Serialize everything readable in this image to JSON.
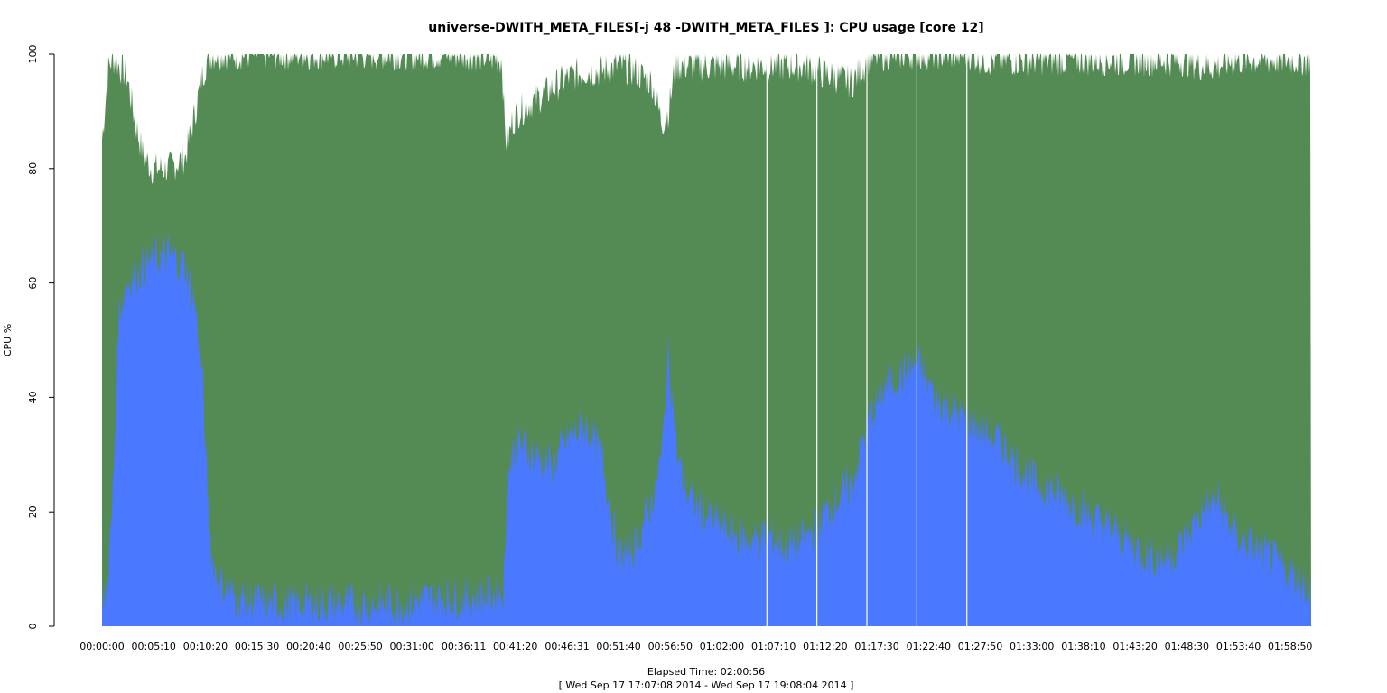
{
  "chart_data": {
    "type": "area",
    "title": "universe-DWITH_META_FILES[-j 48 -DWITH_META_FILES ]: CPU usage [core 12]",
    "xlabel": "Elapsed Time: 02:00:56",
    "xlabel_sub": "[ Wed Sep 17 17:07:08 2014 - Wed Sep 17 19:08:04 2014 ]",
    "ylabel": "CPU %",
    "ylim": [
      0,
      100
    ],
    "xlim_seconds": [
      0,
      7256
    ],
    "y_ticks": [
      "0",
      "20",
      "40",
      "60",
      "80",
      "100"
    ],
    "x_ticks": [
      "00:00:00",
      "00:05:10",
      "00:10:20",
      "00:15:30",
      "00:20:40",
      "00:25:50",
      "00:31:00",
      "00:36:11",
      "00:41:20",
      "00:46:31",
      "00:51:40",
      "00:56:50",
      "01:02:00",
      "01:07:10",
      "01:12:20",
      "01:17:30",
      "01:22:40",
      "01:27:50",
      "01:33:00",
      "01:38:10",
      "01:43:20",
      "01:48:30",
      "01:53:40",
      "01:58:50"
    ],
    "x_tick_seconds": [
      0,
      310,
      620,
      930,
      1240,
      1550,
      1860,
      2171,
      2480,
      2791,
      3100,
      3410,
      3720,
      4030,
      4340,
      4650,
      4960,
      5270,
      5580,
      5890,
      6200,
      6510,
      6820,
      7130
    ],
    "grid": false,
    "legend": "none",
    "colors": {
      "user": "#4a78ff",
      "system": "#548a54"
    },
    "series": [
      {
        "x": [
          0,
          40,
          60,
          80,
          100,
          150,
          200,
          250,
          300,
          400,
          500,
          560,
          600,
          630,
          660,
          700,
          800,
          1000,
          1200,
          1500,
          1800,
          2000,
          2200,
          2400,
          2415,
          2430,
          2460,
          2500,
          2600,
          2700,
          2800,
          2900,
          3000,
          3100,
          3200,
          3300,
          3360,
          3400,
          3430,
          3450,
          3500,
          3600,
          3700,
          3800,
          3900,
          4000,
          4100,
          4200,
          4300,
          4400,
          4500,
          4600,
          4700,
          4800,
          4900,
          5000,
          5100,
          5200,
          5300,
          5400,
          5500,
          5600,
          5700,
          5800,
          5900,
          6000,
          6100,
          6200,
          6300,
          6400,
          6500,
          6600,
          6700,
          6800,
          6900,
          7000,
          7100,
          7200,
          7256
        ],
        "values": [
          2,
          10,
          20,
          35,
          55,
          60,
          62,
          63,
          64,
          65,
          63,
          56,
          45,
          25,
          12,
          8,
          5,
          4,
          4,
          4,
          4,
          5,
          5,
          6,
          8,
          25,
          30,
          32,
          30,
          28,
          33,
          35,
          30,
          12,
          14,
          22,
          30,
          48,
          38,
          30,
          24,
          20,
          18,
          16,
          15,
          16,
          14,
          15,
          18,
          22,
          25,
          36,
          42,
          44,
          46,
          40,
          38,
          36,
          34,
          32,
          28,
          25,
          24,
          22,
          20,
          18,
          16,
          14,
          12,
          12,
          15,
          20,
          22,
          16,
          14,
          12,
          10,
          8,
          6
        ]
      },
      {
        "x": [
          0,
          40,
          60,
          80,
          100,
          150,
          200,
          250,
          300,
          400,
          500,
          560,
          600,
          630,
          660,
          700,
          800,
          1000,
          1200,
          1500,
          1800,
          2000,
          2200,
          2400,
          2415,
          2430,
          2460,
          2500,
          2600,
          2700,
          2800,
          2900,
          3000,
          3100,
          3200,
          3300,
          3360,
          3400,
          3430,
          3450,
          3500,
          3600,
          3700,
          3800,
          3900,
          4000,
          4100,
          4200,
          4300,
          4400,
          4500,
          4600,
          4700,
          4800,
          4900,
          5000,
          5100,
          5200,
          5300,
          5400,
          5500,
          5600,
          5700,
          5800,
          5900,
          6000,
          6100,
          6200,
          6300,
          6400,
          6500,
          6600,
          6700,
          6800,
          6900,
          7000,
          7100,
          7200,
          7256
        ],
        "values": [
          85,
          98,
          99,
          99,
          98,
          96,
          88,
          82,
          80,
          80,
          82,
          90,
          96,
          99,
          100,
          100,
          100,
          100,
          100,
          100,
          100,
          100,
          100,
          99,
          88,
          84,
          88,
          90,
          92,
          94,
          96,
          97,
          97,
          98,
          97,
          95,
          88,
          90,
          96,
          98,
          98,
          98,
          98,
          98,
          98,
          98,
          98,
          98,
          97,
          96,
          95,
          99,
          100,
          100,
          100,
          100,
          100,
          100,
          99,
          99,
          99,
          99,
          99,
          99,
          99,
          99,
          99,
          99,
          99,
          99,
          99,
          98,
          98,
          99,
          99,
          99,
          99,
          99,
          99
        ]
      }
    ],
    "gaps_seconds": [
      3990,
      4290,
      4590,
      4890,
      5190
    ]
  }
}
